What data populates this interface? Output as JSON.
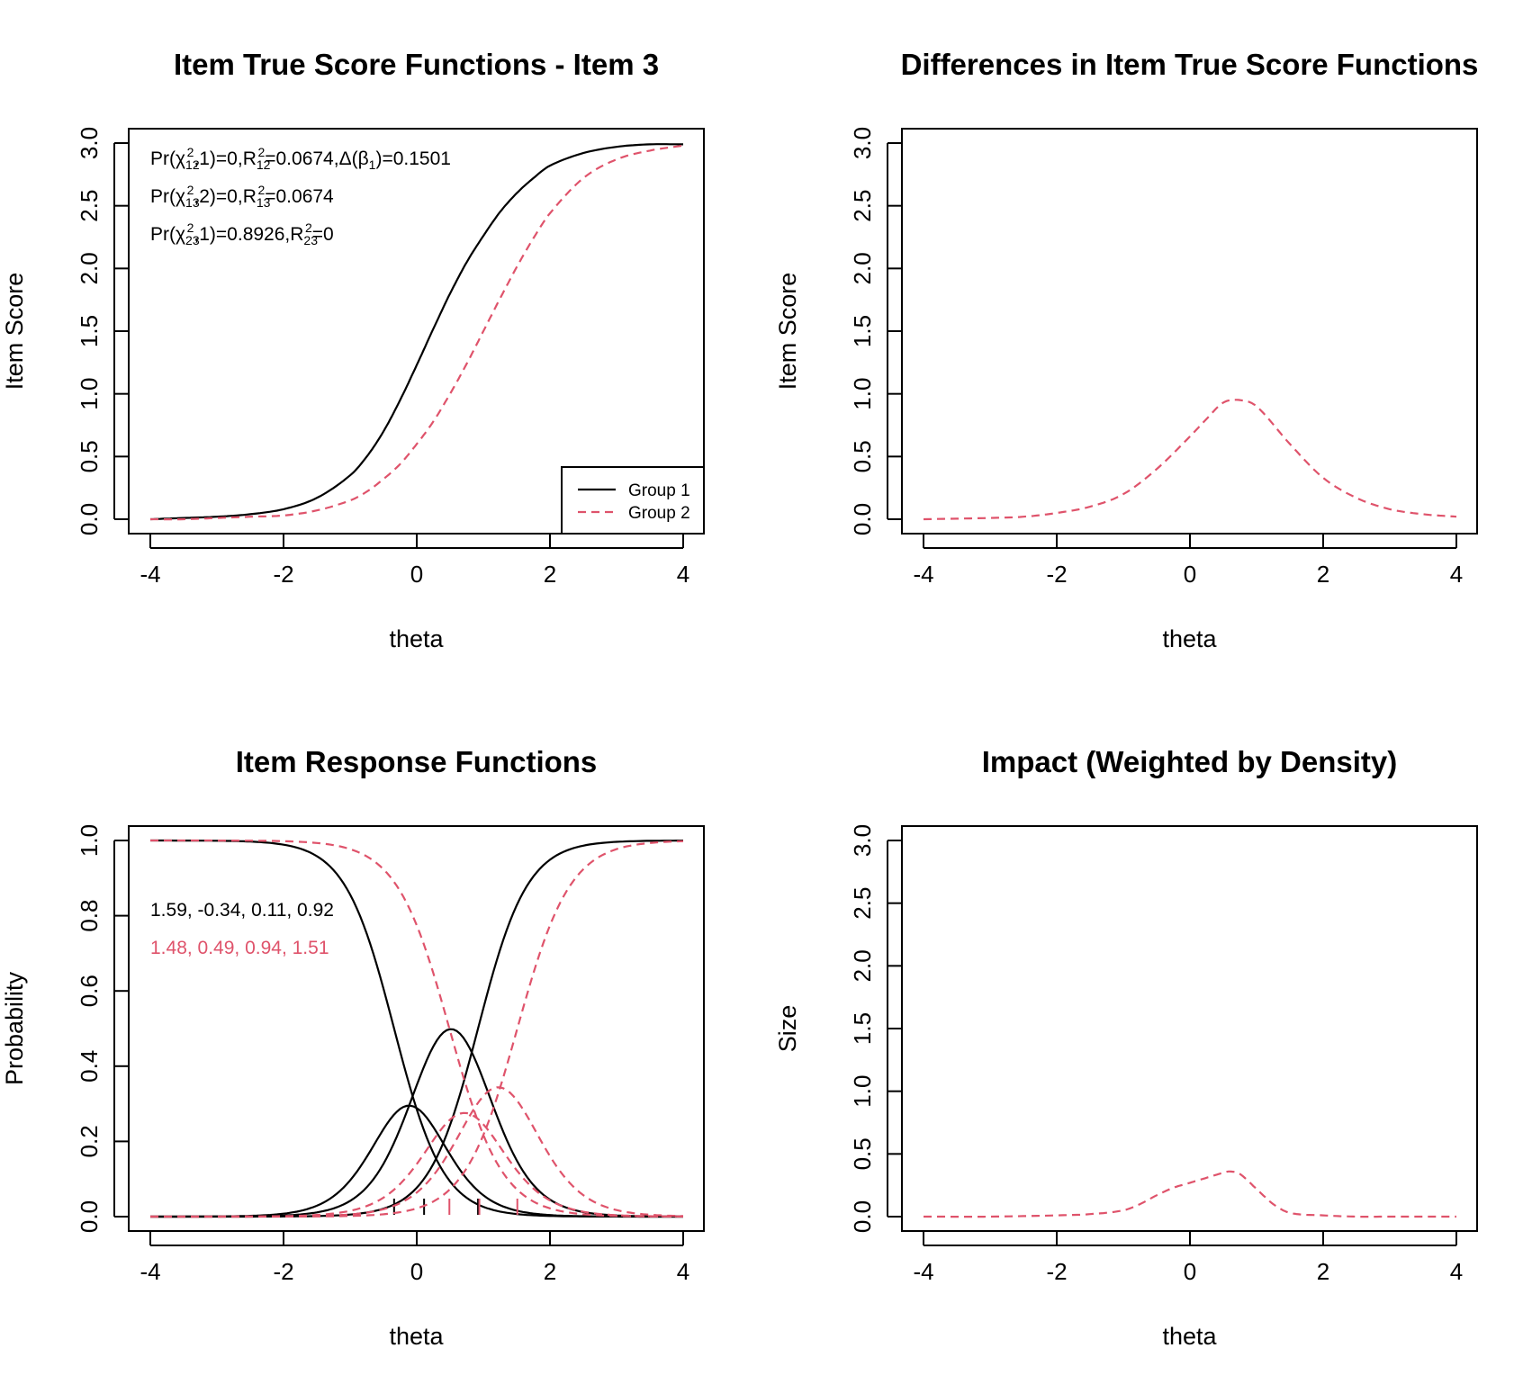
{
  "colors": {
    "group1": "#000000",
    "group2": "#DF536B"
  },
  "chart_data": [
    {
      "id": "p1",
      "type": "line",
      "title": "Item True Score Functions - Item 3",
      "xlabel": "theta",
      "ylabel": "Item Score",
      "xlim": [
        -4,
        4
      ],
      "ylim": [
        0,
        3
      ],
      "xticks": [
        "-4",
        "-2",
        "0",
        "2",
        "4"
      ],
      "yticks": [
        "0.0",
        "0.5",
        "1.0",
        "1.5",
        "2.0",
        "2.5",
        "3.0"
      ],
      "x": [
        -4,
        -3.5,
        -3,
        -2.5,
        -2,
        -1.5,
        -1,
        -0.75,
        -0.5,
        -0.25,
        0,
        0.25,
        0.5,
        0.75,
        1,
        1.25,
        1.5,
        1.75,
        2,
        2.5,
        3,
        3.5,
        4
      ],
      "series": [
        {
          "name": "Group 1",
          "style": "solid",
          "values": [
            0.0,
            0.01,
            0.02,
            0.04,
            0.08,
            0.17,
            0.35,
            0.5,
            0.7,
            0.95,
            1.23,
            1.52,
            1.8,
            2.05,
            2.26,
            2.45,
            2.6,
            2.72,
            2.82,
            2.92,
            2.97,
            2.99,
            2.99
          ]
        },
        {
          "name": "Group 2",
          "style": "dashed",
          "values": [
            0.0,
            0.0,
            0.01,
            0.02,
            0.03,
            0.07,
            0.15,
            0.22,
            0.32,
            0.44,
            0.6,
            0.78,
            1.0,
            1.24,
            1.5,
            1.76,
            2.01,
            2.24,
            2.44,
            2.72,
            2.87,
            2.94,
            2.98
          ]
        }
      ],
      "legend": {
        "position": "bottom-right",
        "entries": [
          "Group 1",
          "Group 2"
        ]
      },
      "annotations": [
        {
          "color": "#000000",
          "parts": [
            {
              "t": "Pr(χ"
            },
            {
              "t": "12",
              "s": "sub"
            },
            {
              "t": "2",
              "s": "sup"
            },
            {
              "t": ",1)=0,R"
            },
            {
              "t": "12",
              "s": "sub"
            },
            {
              "t": "2",
              "s": "sup"
            },
            {
              "t": "=0.0674,Δ(β"
            },
            {
              "t": "1",
              "s": "sub"
            },
            {
              "t": ")=0.1501"
            }
          ]
        },
        {
          "color": "#000000",
          "parts": [
            {
              "t": "Pr(χ"
            },
            {
              "t": "13",
              "s": "sub"
            },
            {
              "t": "2",
              "s": "sup"
            },
            {
              "t": ",2)=0,R"
            },
            {
              "t": "13",
              "s": "sub"
            },
            {
              "t": "2",
              "s": "sup"
            },
            {
              "t": "=0.0674"
            }
          ]
        },
        {
          "color": "#000000",
          "parts": [
            {
              "t": "Pr(χ"
            },
            {
              "t": "23",
              "s": "sub"
            },
            {
              "t": "2",
              "s": "sup"
            },
            {
              "t": ",1)=0.8926,R"
            },
            {
              "t": "23",
              "s": "sub"
            },
            {
              "t": "2",
              "s": "sup"
            },
            {
              "t": "=0"
            }
          ]
        }
      ]
    },
    {
      "id": "p2",
      "type": "line",
      "title": "Differences in Item True Score Functions",
      "xlabel": "theta",
      "ylabel": "Item Score",
      "xlim": [
        -4,
        4
      ],
      "ylim": [
        0,
        3
      ],
      "xticks": [
        "-4",
        "-2",
        "0",
        "2",
        "4"
      ],
      "yticks": [
        "0.0",
        "0.5",
        "1.0",
        "1.5",
        "2.0",
        "2.5",
        "3.0"
      ],
      "x": [
        -4,
        -3,
        -2.5,
        -2,
        -1.5,
        -1,
        -0.5,
        0,
        0.25,
        0.5,
        0.75,
        1,
        1.5,
        2,
        2.5,
        3,
        3.5,
        4
      ],
      "series": [
        {
          "style": "dashed",
          "values": [
            0.0,
            0.01,
            0.02,
            0.05,
            0.1,
            0.2,
            0.4,
            0.66,
            0.8,
            0.93,
            0.95,
            0.9,
            0.6,
            0.33,
            0.17,
            0.08,
            0.04,
            0.02
          ]
        }
      ]
    },
    {
      "id": "p3",
      "type": "line",
      "title": "Item Response Functions",
      "xlabel": "theta",
      "ylabel": "Probability",
      "xlim": [
        -4,
        4
      ],
      "ylim": [
        0,
        1
      ],
      "xticks": [
        "-4",
        "-2",
        "0",
        "2",
        "4"
      ],
      "yticks": [
        "0.0",
        "0.2",
        "0.4",
        "0.6",
        "0.8",
        "1.0"
      ],
      "model": {
        "group1": {
          "a": 1.59,
          "b": [
            -0.34,
            0.11,
            0.92
          ]
        },
        "group2": {
          "a": 1.48,
          "b": [
            0.49,
            0.94,
            1.51
          ]
        }
      },
      "annotations": [
        {
          "color": "#000000",
          "text": "1.59, -0.34, 0.11, 0.92"
        },
        {
          "color": "#DF536B",
          "text": "1.48, 0.49, 0.94, 1.51"
        }
      ]
    },
    {
      "id": "p4",
      "type": "line",
      "title": "Impact (Weighted by Density)",
      "xlabel": "theta",
      "ylabel": "Size",
      "xlim": [
        -4,
        4
      ],
      "ylim": [
        0,
        3
      ],
      "xticks": [
        "-4",
        "-2",
        "0",
        "2",
        "4"
      ],
      "yticks": [
        "0.0",
        "0.5",
        "1.0",
        "1.5",
        "2.0",
        "2.5",
        "3.0"
      ],
      "x": [
        -4,
        -3,
        -2,
        -1.5,
        -1,
        -0.75,
        -0.5,
        -0.25,
        0,
        0.25,
        0.5,
        0.6,
        0.75,
        1,
        1.25,
        1.5,
        2,
        2.5,
        3,
        4
      ],
      "series": [
        {
          "style": "dashed",
          "values": [
            0.0,
            0.0,
            0.01,
            0.02,
            0.05,
            0.1,
            0.17,
            0.23,
            0.27,
            0.31,
            0.35,
            0.36,
            0.34,
            0.22,
            0.1,
            0.03,
            0.01,
            0.0,
            0.0,
            0.0
          ]
        }
      ]
    }
  ]
}
